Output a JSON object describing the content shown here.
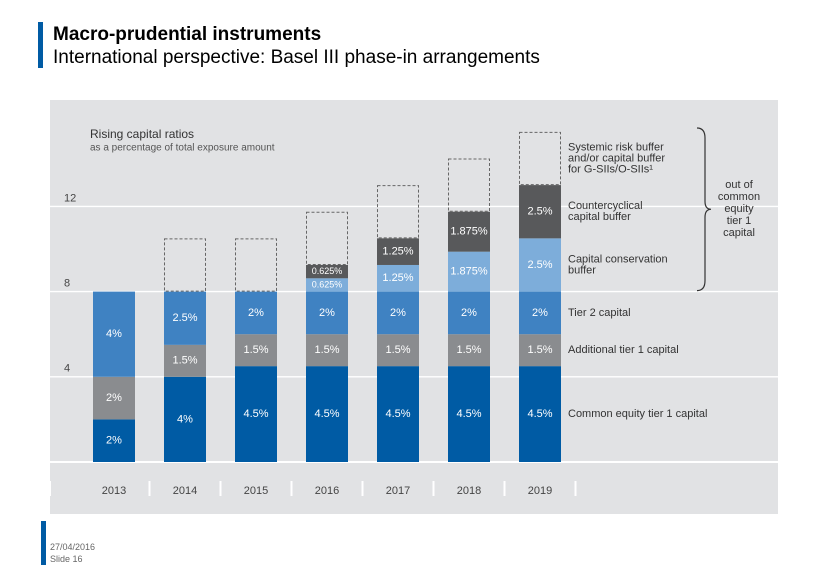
{
  "slide": {
    "title": "Macro-prudential instruments",
    "subtitle": "International perspective: Basel III phase-in arrangements",
    "date": "27/04/2016",
    "slide_number": "Slide 16"
  },
  "colors": {
    "brand_blue": "#005ba4",
    "panel": "#e1e2e4",
    "cet1": "#005ba4",
    "at1": "#8a8c8f",
    "tier2": "#3f82c2",
    "conservation": "#7dadda",
    "countercyclical": "#58595b",
    "systemic_outline": "#666666"
  },
  "chart_data": {
    "type": "bar",
    "stacked": true,
    "title": "Rising capital ratios",
    "subtitle": "as a percentage of total exposure amount",
    "categories": [
      "2013",
      "2014",
      "2015",
      "2016",
      "2017",
      "2018",
      "2019"
    ],
    "yticks": [
      4,
      8,
      12
    ],
    "ylim": [
      0,
      15
    ],
    "grid": true,
    "series": [
      {
        "key": "cet1",
        "name": "Common equity tier 1 capital",
        "values": [
          2,
          4,
          4.5,
          4.5,
          4.5,
          4.5,
          4.5
        ],
        "labels": [
          "2%",
          "4%",
          "4.5%",
          "4.5%",
          "4.5%",
          "4.5%",
          "4.5%"
        ]
      },
      {
        "key": "at1",
        "name": "Additional tier 1 capital",
        "values": [
          2,
          1.5,
          1.5,
          1.5,
          1.5,
          1.5,
          1.5
        ],
        "labels": [
          "2%",
          "1.5%",
          "1.5%",
          "1.5%",
          "1.5%",
          "1.5%",
          "1.5%"
        ]
      },
      {
        "key": "tier2",
        "name": "Tier 2 capital",
        "values": [
          4,
          2.5,
          2,
          2,
          2,
          2,
          2
        ],
        "labels": [
          "4%",
          "2.5%",
          "2%",
          "2%",
          "2%",
          "2%",
          "2%"
        ]
      },
      {
        "key": "conservation",
        "name": "Capital conservation buffer",
        "values": [
          0,
          0,
          0,
          0.625,
          1.25,
          1.875,
          2.5
        ],
        "labels": [
          "",
          "",
          "",
          "0.625%",
          "1.25%",
          "1.875%",
          "2.5%"
        ]
      },
      {
        "key": "countercyclical",
        "name": "Countercyclical capital buffer",
        "values": [
          0,
          0,
          0,
          0.625,
          1.25,
          1.875,
          2.5
        ],
        "labels": [
          "",
          "",
          "",
          "0.625%",
          "1.25%",
          "1.875%",
          "2.5%"
        ]
      },
      {
        "key": "systemic",
        "name": "Systemic risk buffer and/or capital buffer for G-SIIs/O-SIIs¹",
        "style": "dashed-outline",
        "values": [
          0,
          2.5,
          2.5,
          2.5,
          2.5,
          2.5,
          2.5
        ],
        "labels": [
          "",
          "",
          "",
          "",
          "",
          "",
          ""
        ]
      }
    ],
    "legend": [
      {
        "key": "systemic",
        "lines": [
          "Systemic risk buffer",
          "and/or capital buffer",
          "for G-SIIs/O-SIIs¹"
        ]
      },
      {
        "key": "countercyclical",
        "lines": [
          "Countercyclical",
          "capital buffer"
        ]
      },
      {
        "key": "conservation",
        "lines": [
          "Capital conservation",
          "buffer"
        ]
      },
      {
        "key": "tier2",
        "lines": [
          "Tier 2 capital"
        ]
      },
      {
        "key": "at1",
        "lines": [
          "Additional tier 1 capital"
        ]
      },
      {
        "key": "cet1",
        "lines": [
          "Common equity tier 1 capital"
        ]
      }
    ],
    "brace_label": [
      "out of",
      "common",
      "equity",
      "tier 1",
      "capital"
    ]
  }
}
